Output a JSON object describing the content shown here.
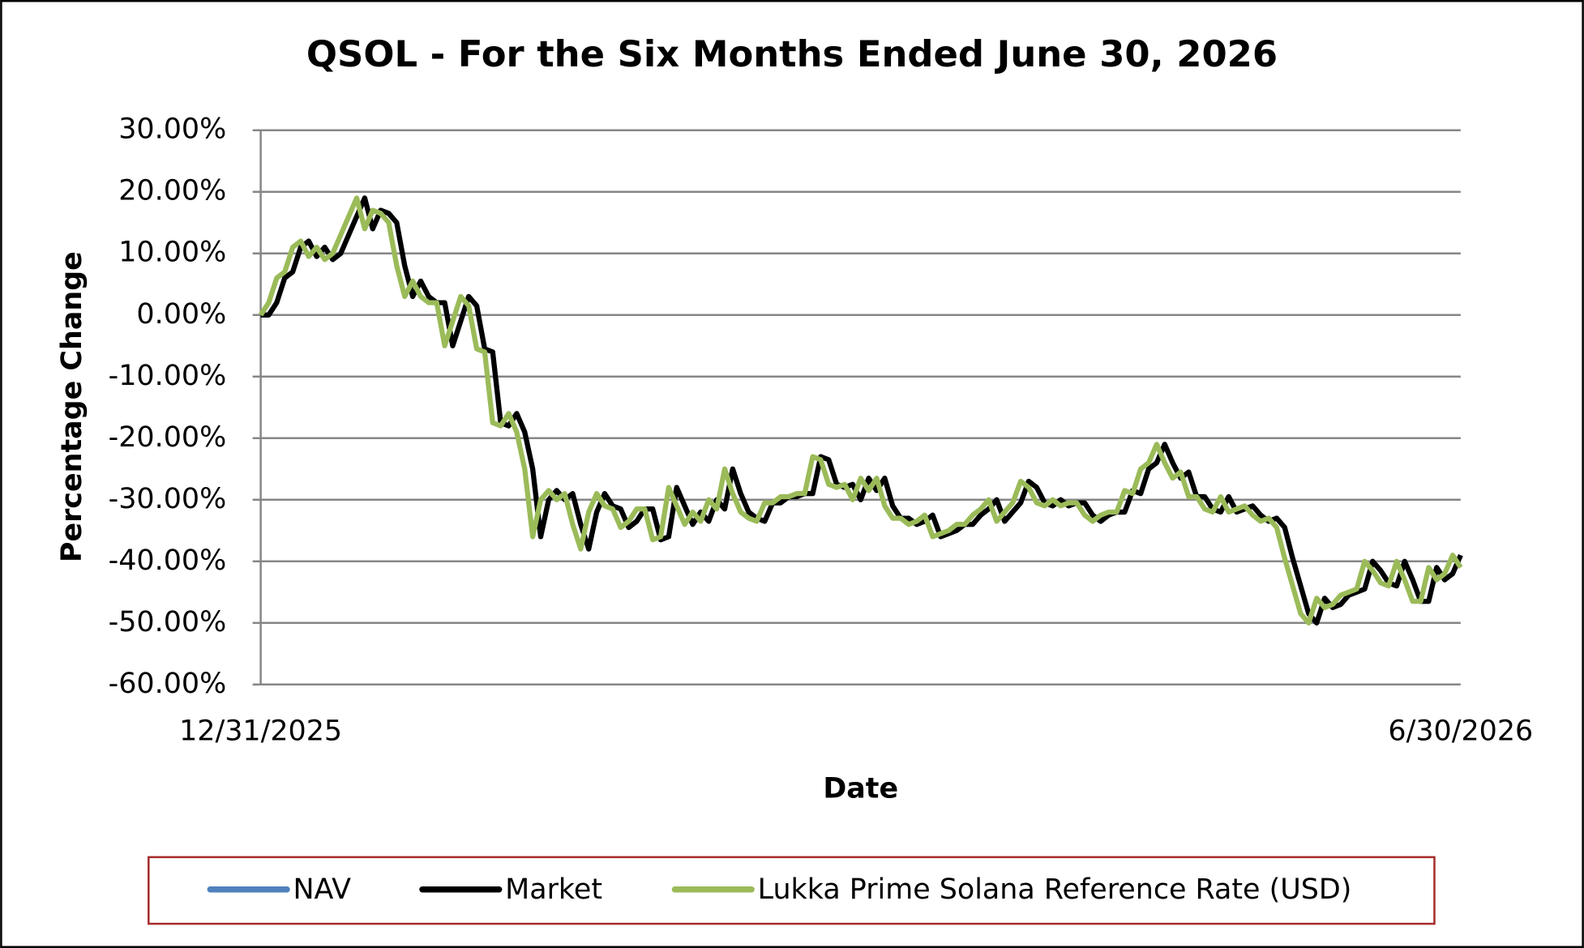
{
  "chart_data": {
    "type": "line",
    "title": "QSOL - For the Six Months Ended June 30, 2026",
    "x_label": "Date",
    "y_label": "Percentage Change",
    "categories": [
      "12/31/2025",
      null,
      null,
      null,
      null,
      null,
      null,
      null,
      null,
      null,
      null,
      null,
      null,
      null,
      null,
      null,
      null,
      null,
      null,
      null,
      null,
      null,
      null,
      null,
      null,
      null,
      null,
      null,
      null,
      null,
      null,
      null,
      null,
      null,
      null,
      null,
      null,
      null,
      null,
      null,
      null,
      null,
      null,
      null,
      null,
      null,
      null,
      null,
      null,
      null,
      null,
      null,
      null,
      null,
      null,
      null,
      null,
      null,
      null,
      null,
      null,
      null,
      null,
      null,
      null,
      null,
      null,
      null,
      null,
      null,
      null,
      null,
      null,
      null,
      null,
      null,
      null,
      null,
      null,
      null,
      null,
      null,
      null,
      null,
      null,
      null,
      null,
      null,
      null,
      null,
      null,
      null,
      null,
      null,
      null,
      null,
      null,
      null,
      null,
      null,
      null,
      null,
      null,
      null,
      null,
      null,
      null,
      null,
      null,
      null,
      null,
      null,
      null,
      null,
      null,
      null,
      null,
      null,
      null,
      null,
      null,
      null,
      null,
      null,
      null,
      null,
      null,
      null,
      null,
      null,
      null,
      null,
      null,
      null,
      null,
      null,
      null,
      null,
      null,
      null,
      null,
      null,
      null,
      null,
      null,
      null,
      null,
      null,
      null,
      null,
      "6/30/2026"
    ],
    "series": [
      {
        "name": "NAV",
        "color": "#4f81bd",
        "values": [
          0,
          0,
          2,
          6,
          7,
          11,
          12,
          9.5,
          11,
          9,
          10,
          13,
          16,
          19,
          14,
          17,
          16.5,
          15,
          8,
          3,
          5.5,
          3,
          2,
          2,
          -5,
          -1,
          3,
          1.5,
          -5.5,
          -6,
          -17.5,
          -18,
          -16,
          -19,
          -25,
          -36,
          -30,
          -28.5,
          -30,
          -29,
          -34,
          -38,
          -32,
          -29,
          -31,
          -31.5,
          -34.5,
          -33.5,
          -31.5,
          -31.5,
          -36.5,
          -36,
          -28,
          -31,
          -34,
          -32,
          -33.5,
          -30,
          -31.5,
          -25,
          -29,
          -32,
          -33,
          -33.5,
          -30.5,
          -30.5,
          -29.5,
          -29.5,
          -29,
          -29,
          -23,
          -23.5,
          -27.5,
          -28,
          -27.5,
          -30,
          -26.5,
          -28.5,
          -26.5,
          -31,
          -33,
          -33,
          -34,
          -33.5,
          -32.5,
          -36,
          -35.5,
          -35,
          -34,
          -34,
          -32.5,
          -31.5,
          -30,
          -33.5,
          -32,
          -30.5,
          -27,
          -28,
          -30.5,
          -31,
          -30,
          -31,
          -30.5,
          -30.5,
          -32.5,
          -33.5,
          -32.5,
          -32,
          -32,
          -28.5,
          -29,
          -25,
          -24,
          -21,
          -24,
          -26.5,
          -25.5,
          -29.5,
          -29.5,
          -31.5,
          -32,
          -29.5,
          -32,
          -31.5,
          -31,
          -32.5,
          -33.5,
          -33,
          -34.5,
          -39.5,
          -44,
          -48.5,
          -50,
          -46,
          -47.5,
          -47,
          -45.5,
          -45,
          -44.5,
          -40,
          -41.5,
          -43.5,
          -44,
          -40,
          -43,
          -46.5,
          -46.5,
          -41,
          -43,
          -42,
          -39
        ]
      },
      {
        "name": "Market",
        "color": "#000000",
        "values": [
          0,
          0,
          2,
          6,
          7,
          11,
          12,
          9.5,
          11,
          9,
          10,
          13,
          16,
          19,
          14,
          17,
          16.5,
          15,
          8,
          3,
          5.5,
          3,
          2,
          2,
          -5,
          -1,
          3,
          1.5,
          -5.5,
          -6,
          -17.5,
          -18,
          -16,
          -19,
          -25,
          -36,
          -30,
          -28.5,
          -30,
          -29,
          -34,
          -38,
          -32,
          -29,
          -31,
          -31.5,
          -34.5,
          -33.5,
          -31.5,
          -31.5,
          -36.5,
          -36,
          -28,
          -31,
          -34,
          -32,
          -33.5,
          -30,
          -31.5,
          -25,
          -29,
          -32,
          -33,
          -33.5,
          -30.5,
          -30.5,
          -29.5,
          -29.5,
          -29,
          -29,
          -23,
          -23.5,
          -27.5,
          -28,
          -27.5,
          -30,
          -26.5,
          -28.5,
          -26.5,
          -31,
          -33,
          -33,
          -34,
          -33.5,
          -32.5,
          -36,
          -35.5,
          -35,
          -34,
          -34,
          -32.5,
          -31.5,
          -30,
          -33.5,
          -32,
          -30.5,
          -27,
          -28,
          -30.5,
          -31,
          -30,
          -31,
          -30.5,
          -30.5,
          -32.5,
          -33.5,
          -32.5,
          -32,
          -32,
          -28.5,
          -29,
          -25,
          -24,
          -21,
          -24,
          -26.5,
          -25.5,
          -29.5,
          -29.5,
          -31.5,
          -32,
          -29.5,
          -32,
          -31.5,
          -31,
          -32.5,
          -33.5,
          -33,
          -34.5,
          -39.5,
          -44,
          -48.5,
          -50,
          -46,
          -47.5,
          -47,
          -45.5,
          -45,
          -44.5,
          -40,
          -41.5,
          -43.5,
          -44,
          -40,
          -43,
          -46.5,
          -46.5,
          -41,
          -43,
          -42,
          -39
        ]
      },
      {
        "name": "Lukka Prime Solana Reference Rate (USD)",
        "color": "#9bbb59",
        "values": [
          0,
          2,
          6,
          7,
          11,
          12,
          9.5,
          11,
          9,
          10,
          13,
          16,
          19,
          14,
          17,
          16.5,
          15,
          8,
          3,
          5.5,
          3,
          2,
          2,
          -5,
          -1,
          3,
          1.5,
          -5.5,
          -6,
          -17.5,
          -18,
          -16,
          -19,
          -25,
          -36,
          -30,
          -28.5,
          -30,
          -29,
          -34,
          -38,
          -32,
          -29,
          -31,
          -31.5,
          -34.5,
          -33.5,
          -31.5,
          -31.5,
          -36.5,
          -36,
          -28,
          -31,
          -34,
          -32,
          -33.5,
          -30,
          -31.5,
          -25,
          -29,
          -32,
          -33,
          -33.5,
          -30.5,
          -30.5,
          -29.5,
          -29.5,
          -29,
          -29,
          -23,
          -23.5,
          -27.5,
          -28,
          -27.5,
          -30,
          -26.5,
          -28.5,
          -26.5,
          -31,
          -33,
          -33,
          -34,
          -33.5,
          -32.5,
          -36,
          -35.5,
          -35,
          -34,
          -34,
          -32.5,
          -31.5,
          -30,
          -33.5,
          -32,
          -30.5,
          -27,
          -28,
          -30.5,
          -31,
          -30,
          -31,
          -30.5,
          -30.5,
          -32.5,
          -33.5,
          -32.5,
          -32,
          -32,
          -28.5,
          -29,
          -25,
          -24,
          -21,
          -24,
          -26.5,
          -25.5,
          -29.5,
          -29.5,
          -31.5,
          -32,
          -29.5,
          -32,
          -31.5,
          -31,
          -32.5,
          -33.5,
          -33,
          -34.5,
          -39.5,
          -44,
          -48.5,
          -50,
          -46,
          -47.5,
          -47,
          -45.5,
          -45,
          -44.5,
          -40,
          -41.5,
          -43.5,
          -44,
          -40,
          -43,
          -46.5,
          -46.5,
          -41,
          -43,
          -42,
          -39,
          -41
        ]
      }
    ],
    "ylim": [
      -60,
      30
    ],
    "yticks": [
      {
        "value": -60,
        "label": "-60.00%"
      },
      {
        "value": -50,
        "label": "-50.00%"
      },
      {
        "value": -40,
        "label": "-40.00%"
      },
      {
        "value": -30,
        "label": "-30.00%"
      },
      {
        "value": -20,
        "label": "-20.00%"
      },
      {
        "value": -10,
        "label": "-10.00%"
      },
      {
        "value": 0,
        "label": "0.00%"
      },
      {
        "value": 10,
        "label": "10.00%"
      },
      {
        "value": 20,
        "label": "20.00%"
      },
      {
        "value": 30,
        "label": "30.00%"
      }
    ],
    "grid": true,
    "legend": "bottom"
  }
}
